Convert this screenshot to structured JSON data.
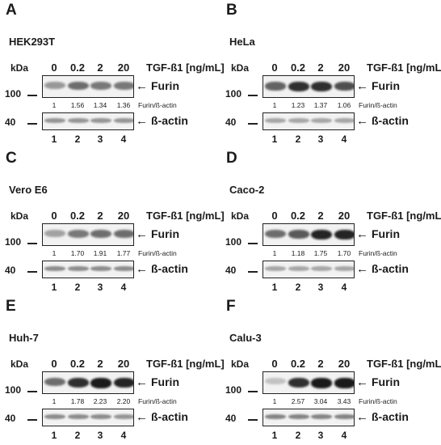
{
  "header_labels": {
    "kda": "kDa",
    "treatment": "TGF-ß1 [ng/mL]",
    "furin_label": "Furin",
    "actin_label": "ß-actin",
    "ratio_label": "Furin/ß-actin",
    "mw_100": "100",
    "mw_40": "40"
  },
  "concentrations": [
    "0",
    "0.2",
    "2",
    "20"
  ],
  "lanes": [
    "1",
    "2",
    "3",
    "4"
  ],
  "panels": [
    {
      "letter": "A",
      "cell_line": "HEK293T",
      "ratios": [
        "1",
        "1.56",
        "1.34",
        "1.36"
      ],
      "furin_intensity": [
        0.35,
        0.55,
        0.5,
        0.5
      ],
      "actin_intensity": [
        0.45,
        0.45,
        0.45,
        0.45
      ]
    },
    {
      "letter": "B",
      "cell_line": "HeLa",
      "ratios": [
        "1",
        "1.23",
        "1.37",
        "1.06"
      ],
      "furin_intensity": [
        0.6,
        0.85,
        0.85,
        0.7
      ],
      "actin_intensity": [
        0.35,
        0.35,
        0.35,
        0.35
      ]
    },
    {
      "letter": "C",
      "cell_line": "Vero E6",
      "ratios": [
        "1",
        "1.70",
        "1.91",
        "1.77"
      ],
      "furin_intensity": [
        0.3,
        0.5,
        0.55,
        0.55
      ],
      "actin_intensity": [
        0.5,
        0.5,
        0.5,
        0.5
      ]
    },
    {
      "letter": "D",
      "cell_line": "Caco-2",
      "ratios": [
        "1",
        "1.18",
        "1.75",
        "1.70"
      ],
      "furin_intensity": [
        0.55,
        0.65,
        0.9,
        0.9
      ],
      "actin_intensity": [
        0.35,
        0.35,
        0.35,
        0.35
      ]
    },
    {
      "letter": "E",
      "cell_line": "Huh-7",
      "ratios": [
        "1",
        "1.78",
        "2.23",
        "2.20"
      ],
      "furin_intensity": [
        0.55,
        0.85,
        0.95,
        0.9
      ],
      "actin_intensity": [
        0.5,
        0.5,
        0.5,
        0.45
      ]
    },
    {
      "letter": "F",
      "cell_line": "Calu-3",
      "ratios": [
        "1",
        "2.57",
        "3.04",
        "3.43"
      ],
      "furin_intensity": [
        0.15,
        0.85,
        0.95,
        0.95
      ],
      "actin_intensity": [
        0.55,
        0.55,
        0.55,
        0.55
      ]
    }
  ]
}
